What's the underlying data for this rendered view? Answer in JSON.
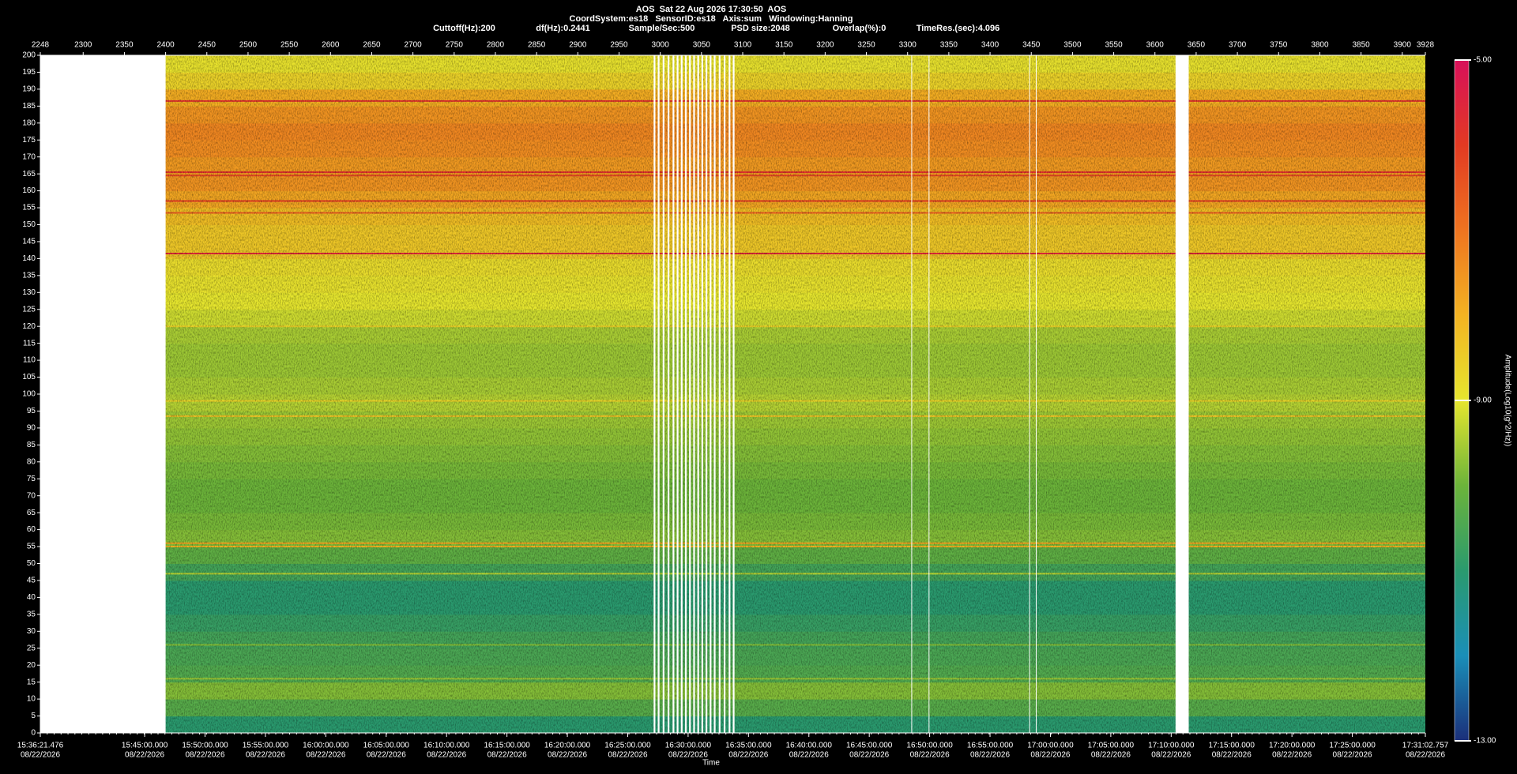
{
  "chart_data": {
    "type": "spectrogram",
    "title": "AOS  Sat 22 Aug 2026 17:30:50  AOS",
    "subtitle": "CoordSystem:es18   SensorID:es18   Axis:sum   Windowing:Hanning",
    "parameters": [
      "Cuttoff(Hz):200",
      "df(Hz):0.2441",
      "Sample/Sec:500",
      "PSD size:2048",
      "Overlap(%):0",
      "TimeRes.(sec):4.096"
    ],
    "xlabel": "Time",
    "colorbar_label": "Amplitude(Log10(g^2/Hz))",
    "xlim": [
      2248,
      3928
    ],
    "xticks": [
      2248,
      2300,
      2350,
      2400,
      2450,
      2500,
      2550,
      2600,
      2650,
      2700,
      2750,
      2800,
      2850,
      2900,
      2950,
      3000,
      3050,
      3100,
      3150,
      3200,
      3250,
      3300,
      3350,
      3400,
      3450,
      3500,
      3550,
      3600,
      3650,
      3700,
      3750,
      3800,
      3850,
      3900,
      3928
    ],
    "x2ticks": [
      {
        "value": 2248,
        "label": "15:36:21.476"
      },
      {
        "value": 2374.59,
        "label": "15:45:00.000"
      },
      {
        "value": 2447.83,
        "label": "15:50:00.000"
      },
      {
        "value": 2521.08,
        "label": "15:55:00.000"
      },
      {
        "value": 2594.32,
        "label": "16:00:00.000"
      },
      {
        "value": 2667.56,
        "label": "16:05:00.000"
      },
      {
        "value": 2740.8,
        "label": "16:10:00.000"
      },
      {
        "value": 2814.04,
        "label": "16:15:00.000"
      },
      {
        "value": 2887.29,
        "label": "16:20:00.000"
      },
      {
        "value": 2960.53,
        "label": "16:25:00.000"
      },
      {
        "value": 3033.77,
        "label": "16:30:00.000"
      },
      {
        "value": 3107.01,
        "label": "16:35:00.000"
      },
      {
        "value": 3180.25,
        "label": "16:40:00.000"
      },
      {
        "value": 3253.5,
        "label": "16:45:00.000"
      },
      {
        "value": 3326.74,
        "label": "16:50:00.000"
      },
      {
        "value": 3399.98,
        "label": "16:55:00.000"
      },
      {
        "value": 3473.22,
        "label": "17:00:00.000"
      },
      {
        "value": 3546.46,
        "label": "17:05:00.000"
      },
      {
        "value": 3619.71,
        "label": "17:10:00.000"
      },
      {
        "value": 3692.95,
        "label": "17:15:00.000"
      },
      {
        "value": 3766.19,
        "label": "17:20:00.000"
      },
      {
        "value": 3839.43,
        "label": "17:25:00.000"
      },
      {
        "value": 3928,
        "label": "17:31:02.757"
      }
    ],
    "x2tick_dates": [
      "08/22/2026",
      "08/22/2026",
      "08/22/2026",
      "08/22/2026",
      "08/22/2026",
      "08/22/2026",
      "08/22/2026",
      "08/22/2026",
      "08/22/2026",
      "08/22/2026",
      "08/22/2026",
      "08/22/2026",
      "08/22/2026",
      "08/22/2026",
      "08/22/2026",
      "08/22/2026",
      "08/22/2026",
      "08/22/2026",
      "08/22/2026",
      "08/22/2026",
      "08/22/2026",
      "08/22/2026",
      "08/22/2026"
    ],
    "ylim": [
      0,
      200
    ],
    "yticks": [
      0,
      5,
      10,
      15,
      20,
      25,
      30,
      35,
      40,
      45,
      50,
      55,
      60,
      65,
      70,
      75,
      80,
      85,
      90,
      95,
      100,
      105,
      110,
      115,
      120,
      125,
      130,
      135,
      140,
      145,
      150,
      155,
      160,
      165,
      170,
      175,
      180,
      185,
      190,
      195,
      200
    ],
    "clim": [
      -13,
      -5
    ],
    "cticks": [
      {
        "value": -5,
        "label": "-5.00"
      },
      {
        "value": -9,
        "label": "-9.00"
      },
      {
        "value": -13,
        "label": "-13.00"
      }
    ],
    "colorscale": [
      "#1b2f7a",
      "#1a8fb8",
      "#2a9a6e",
      "#6cb43a",
      "#e6e62e",
      "#f3b322",
      "#ef7420",
      "#e23a22",
      "#d8105a"
    ],
    "freq_bins": [
      0,
      5,
      10,
      15,
      20,
      25,
      30,
      35,
      40,
      45,
      50,
      55,
      60,
      65,
      70,
      75,
      80,
      85,
      90,
      95,
      100,
      105,
      110,
      115,
      120,
      125,
      130,
      135,
      140,
      145,
      150,
      155,
      160,
      165,
      170,
      175,
      180,
      185,
      190,
      195,
      200
    ],
    "values": [
      -11,
      -10.3,
      -9.8,
      -10.4,
      -10.5,
      -10.6,
      -10.8,
      -11,
      -11,
      -10.6,
      -10.2,
      -9.8,
      -9.9,
      -10,
      -10,
      -9.9,
      -9.8,
      -9.7,
      -9.6,
      -9.4,
      -9.5,
      -9.6,
      -9.6,
      -9.5,
      -9.2,
      -9,
      -8.9,
      -8.8,
      -8.4,
      -8.4,
      -8.2,
      -7.8,
      -7.5,
      -7.6,
      -7.4,
      -7.3,
      -7.5,
      -7.9,
      -8.6,
      -8.9
    ],
    "lines": [
      {
        "freq": 186.5,
        "value": -5.8
      },
      {
        "freq": 165.5,
        "value": -5.8
      },
      {
        "freq": 164.5,
        "value": -6.2
      },
      {
        "freq": 157,
        "value": -6
      },
      {
        "freq": 153.5,
        "value": -6.6
      },
      {
        "freq": 141.5,
        "value": -5.6
      },
      {
        "freq": 120,
        "value": -8.6
      },
      {
        "freq": 98,
        "value": -8.6
      },
      {
        "freq": 93.5,
        "value": -8.3
      },
      {
        "freq": 56,
        "value": -7.8
      },
      {
        "freq": 55,
        "value": -8
      },
      {
        "freq": 47,
        "value": -9.4
      },
      {
        "freq": 26,
        "value": -9.8
      },
      {
        "freq": 16,
        "value": -9.6
      }
    ],
    "missing_x": [
      [
        2248,
        2400
      ],
      [
        3625,
        3641
      ]
    ],
    "dropouts_x": [
      2993,
      2998,
      3004,
      3010,
      3016,
      3021,
      3026,
      3031,
      3036,
      3041,
      3046,
      3051,
      3056,
      3061,
      3066,
      3072,
      3078,
      3084,
      3089,
      3305,
      3326,
      3448,
      3456
    ]
  }
}
